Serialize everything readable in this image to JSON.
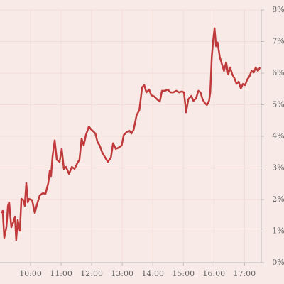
{
  "chart_data": {
    "type": "line",
    "x": [
      9.05,
      9.09,
      9.14,
      9.21,
      9.26,
      9.3,
      9.37,
      9.44,
      9.49,
      9.53,
      9.58,
      9.65,
      9.7,
      9.77,
      9.81,
      9.86,
      9.91,
      9.95,
      10.05,
      10.14,
      10.21,
      10.3,
      10.4,
      10.49,
      10.58,
      10.63,
      10.67,
      10.72,
      10.79,
      10.86,
      10.95,
      11.02,
      11.09,
      11.16,
      11.26,
      11.35,
      11.44,
      11.53,
      11.6,
      11.67,
      11.74,
      11.81,
      11.91,
      11.98,
      12.05,
      12.12,
      12.19,
      12.26,
      12.35,
      12.44,
      12.53,
      12.63,
      12.7,
      12.79,
      12.88,
      12.98,
      13.05,
      13.14,
      13.23,
      13.3,
      13.37,
      13.47,
      13.56,
      13.65,
      13.72,
      13.79,
      13.88,
      13.95,
      14.05,
      14.14,
      14.23,
      14.3,
      14.4,
      14.49,
      14.58,
      14.67,
      14.77,
      14.86,
      14.95,
      15.02,
      15.09,
      15.16,
      15.26,
      15.33,
      15.42,
      15.49,
      15.56,
      15.63,
      15.7,
      15.77,
      15.84,
      15.88,
      15.93,
      15.98,
      16.02,
      16.07,
      16.12,
      16.19,
      16.26,
      16.33,
      16.4,
      16.47,
      16.53,
      16.6,
      16.67,
      16.74,
      16.81,
      16.88,
      16.95,
      17.02,
      17.09,
      17.16,
      17.23,
      17.3,
      17.37,
      17.44,
      17.51
    ],
    "series": [
      {
        "color": "#c0393b",
        "values": [
          1.57,
          1.64,
          0.79,
          1.12,
          1.8,
          1.91,
          1.12,
          1.3,
          1.46,
          0.72,
          1.35,
          1.01,
          2.02,
          1.98,
          1.8,
          2.52,
          1.91,
          2.02,
          1.98,
          1.57,
          1.84,
          2.13,
          2.2,
          2.18,
          2.52,
          2.92,
          2.74,
          3.37,
          3.87,
          3.26,
          3.19,
          3.6,
          2.97,
          3.03,
          2.81,
          3.03,
          2.97,
          3.15,
          3.26,
          3.93,
          3.71,
          4.04,
          4.31,
          4.22,
          4.16,
          4.09,
          3.82,
          3.71,
          3.48,
          3.33,
          3.19,
          3.33,
          3.78,
          3.6,
          3.64,
          3.71,
          4.04,
          4.13,
          4.18,
          4.09,
          4.2,
          4.67,
          4.83,
          5.55,
          5.62,
          5.39,
          5.48,
          5.3,
          5.26,
          5.17,
          5.1,
          5.44,
          5.44,
          5.48,
          5.39,
          5.39,
          5.44,
          5.39,
          5.42,
          5.39,
          4.76,
          5.17,
          5.28,
          5.12,
          5.21,
          5.44,
          5.39,
          5.17,
          5.06,
          4.99,
          5.12,
          5.39,
          6.52,
          7.08,
          7.42,
          6.85,
          6.97,
          6.52,
          6.29,
          6.07,
          6.34,
          5.96,
          6.18,
          5.96,
          5.84,
          5.66,
          5.73,
          5.51,
          5.66,
          5.62,
          5.8,
          5.89,
          6.07,
          6.02,
          6.18,
          6.07,
          6.18
        ]
      }
    ],
    "xlim": [
      9.0,
      17.55
    ],
    "xticks": [
      {
        "value": 10,
        "label": "10:00"
      },
      {
        "value": 11,
        "label": "11:00"
      },
      {
        "value": 12,
        "label": "12:00"
      },
      {
        "value": 13,
        "label": "13:00"
      },
      {
        "value": 14,
        "label": "14:00"
      },
      {
        "value": 15,
        "label": "15:00"
      },
      {
        "value": 16,
        "label": "16:00"
      },
      {
        "value": 17,
        "label": "17:00"
      }
    ],
    "ylim": [
      0,
      8
    ],
    "yticks": [
      {
        "value": 0,
        "label": "0%"
      },
      {
        "value": 1,
        "label": "1%"
      },
      {
        "value": 2,
        "label": "2%"
      },
      {
        "value": 3,
        "label": "3%"
      },
      {
        "value": 4,
        "label": "4%"
      },
      {
        "value": 5,
        "label": "5%"
      },
      {
        "value": 6,
        "label": "6%"
      },
      {
        "value": 7,
        "label": "7%"
      },
      {
        "value": 8,
        "label": "8%"
      }
    ],
    "grid": true
  }
}
